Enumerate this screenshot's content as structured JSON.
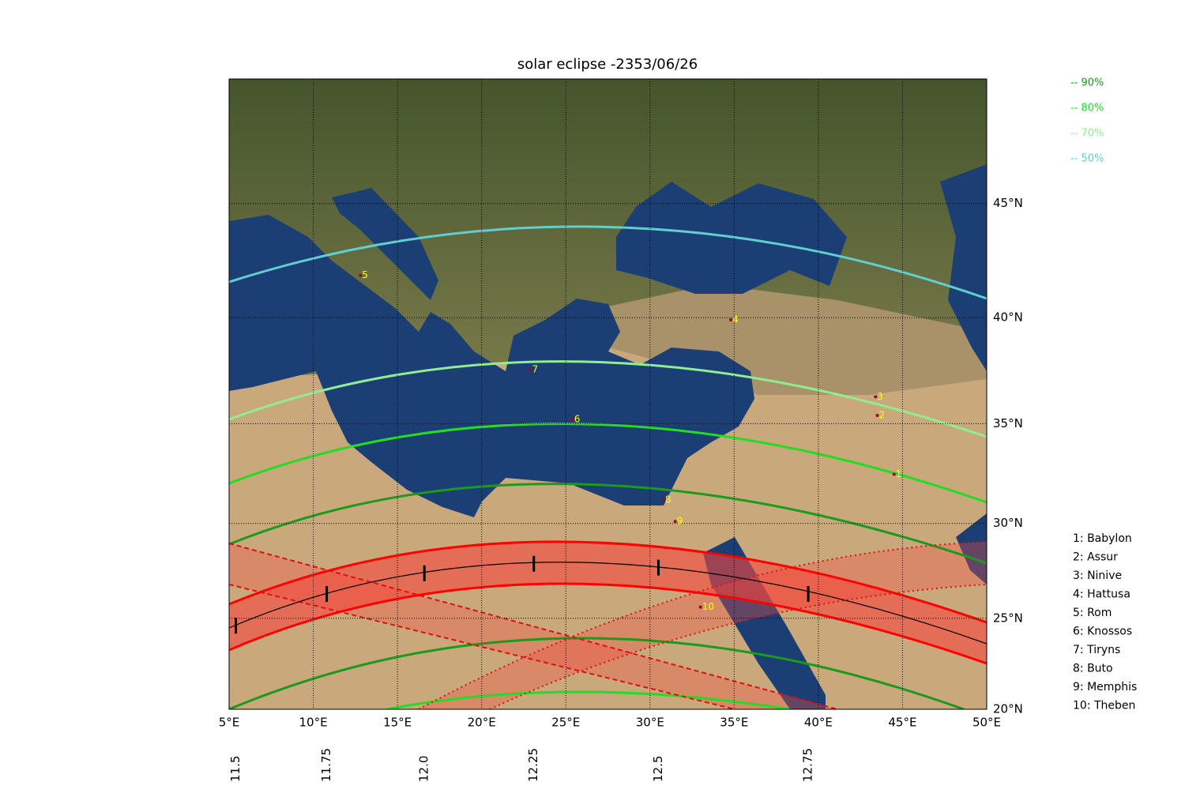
{
  "chart_data": {
    "type": "map",
    "title": "solar eclipse -2353/06/26",
    "xlim": [
      5,
      50
    ],
    "ylim": [
      20,
      50
    ],
    "xticks": [
      {
        "value": 5,
        "label": "5°E"
      },
      {
        "value": 10,
        "label": "10°E"
      },
      {
        "value": 15,
        "label": "15°E"
      },
      {
        "value": 20,
        "label": "20°E"
      },
      {
        "value": 25,
        "label": "25°E"
      },
      {
        "value": 30,
        "label": "30°E"
      },
      {
        "value": 35,
        "label": "35°E"
      },
      {
        "value": 40,
        "label": "40°E"
      },
      {
        "value": 45,
        "label": "45°E"
      },
      {
        "value": 50,
        "label": "50°E"
      }
    ],
    "yticks": [
      {
        "value": 20,
        "label": "20°N"
      },
      {
        "value": 25,
        "label": "25°N"
      },
      {
        "value": 30,
        "label": "30°N"
      },
      {
        "value": 35,
        "label": "35°N"
      },
      {
        "value": 40,
        "label": "40°N"
      },
      {
        "value": 45,
        "label": "45°N"
      }
    ],
    "grid": true,
    "time_marks": [
      {
        "value": 11.5,
        "lon": 5.4,
        "lat": 24.6
      },
      {
        "value": 11.75,
        "lon": 10.8,
        "lat": 26.3
      },
      {
        "value": 12,
        "label": "12.0",
        "lon": 16.6,
        "lat": 27.4
      },
      {
        "value": 12.25,
        "label": "12.25",
        "lon": 23.1,
        "lat": 27.9
      },
      {
        "value": 12.5,
        "lon": 30.5,
        "lat": 27.7
      },
      {
        "value": 12.75,
        "lon": 39.4,
        "lat": 26.3
      }
    ],
    "legend": [
      {
        "label": "-- 90%",
        "color": "#1c9a1c"
      },
      {
        "label": "-- 80%",
        "color": "#22dd22"
      },
      {
        "label": "-- 70%",
        "color": "#90ee90"
      },
      {
        "label": "-- 50%",
        "color": "#5fcfcf"
      }
    ],
    "sites": [
      {
        "id": 1,
        "label": "1: Babylon",
        "lon": 44.5,
        "lat": 32.5
      },
      {
        "id": 2,
        "label": "2: Assur",
        "lon": 43.5,
        "lat": 35.4
      },
      {
        "id": 3,
        "label": "3: Ninive",
        "lon": 43.4,
        "lat": 36.3
      },
      {
        "id": 4,
        "label": "4: Hattusa",
        "lon": 34.8,
        "lat": 39.9
      },
      {
        "id": 5,
        "label": "5: Rom",
        "lon": 12.8,
        "lat": 41.9
      },
      {
        "id": 6,
        "label": "6: Knossos",
        "lon": 25.4,
        "lat": 35.2
      },
      {
        "id": 7,
        "label": "7: Tiryns",
        "lon": 22.9,
        "lat": 37.6
      },
      {
        "id": 8,
        "label": "8: Buto",
        "lon": 30.8,
        "lat": 31.2
      },
      {
        "id": 9,
        "label": "9: Memphis",
        "lon": 31.5,
        "lat": 30.1
      },
      {
        "id": 10,
        "label": "10: Theben",
        "lon": 33.0,
        "lat": 25.6
      }
    ]
  }
}
